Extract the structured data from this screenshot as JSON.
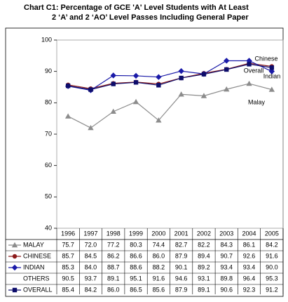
{
  "chart_data": {
    "type": "line",
    "title": [
      "Chart C1:  Percentage of GCE 'A' Level Students with At Least",
      "2 ‘A’ and 2 ‘AO’ Level Passes Including General Paper"
    ],
    "categories": [
      "1996",
      "1997",
      "1998",
      "1999",
      "2000",
      "2001",
      "2002",
      "2003",
      "2004",
      "2005"
    ],
    "series": [
      {
        "name": "MALAY",
        "color": "#8c8c8c",
        "marker": "triangle",
        "values": [
          75.7,
          72.0,
          77.2,
          80.3,
          74.4,
          82.7,
          82.2,
          84.3,
          86.1,
          84.2
        ]
      },
      {
        "name": "CHINESE",
        "color": "#8b1a1a",
        "marker": "circle",
        "values": [
          85.7,
          84.5,
          86.2,
          86.6,
          86.0,
          87.9,
          89.4,
          90.7,
          92.6,
          91.6
        ]
      },
      {
        "name": "INDIAN",
        "color": "#1a1aa8",
        "marker": "diamond",
        "values": [
          85.3,
          84.0,
          88.7,
          88.6,
          88.2,
          90.1,
          89.2,
          93.4,
          93.4,
          90.0
        ]
      },
      {
        "name": "OTHERS",
        "color": null,
        "marker": "none",
        "values": [
          90.5,
          93.7,
          89.1,
          95.1,
          91.6,
          94.6,
          93.1,
          89.8,
          96.4,
          95.3
        ]
      },
      {
        "name": "OVERALL",
        "color": "#0d0d6b",
        "marker": "square",
        "values": [
          85.4,
          84.2,
          86.0,
          86.5,
          85.6,
          87.9,
          89.1,
          90.6,
          92.3,
          91.2
        ]
      }
    ],
    "annotations": [
      "Chinese",
      "Overall",
      "Indian",
      "Malay"
    ],
    "ylim": [
      40,
      100
    ],
    "yticks": [
      40,
      50,
      60,
      70,
      80,
      90,
      100
    ]
  }
}
